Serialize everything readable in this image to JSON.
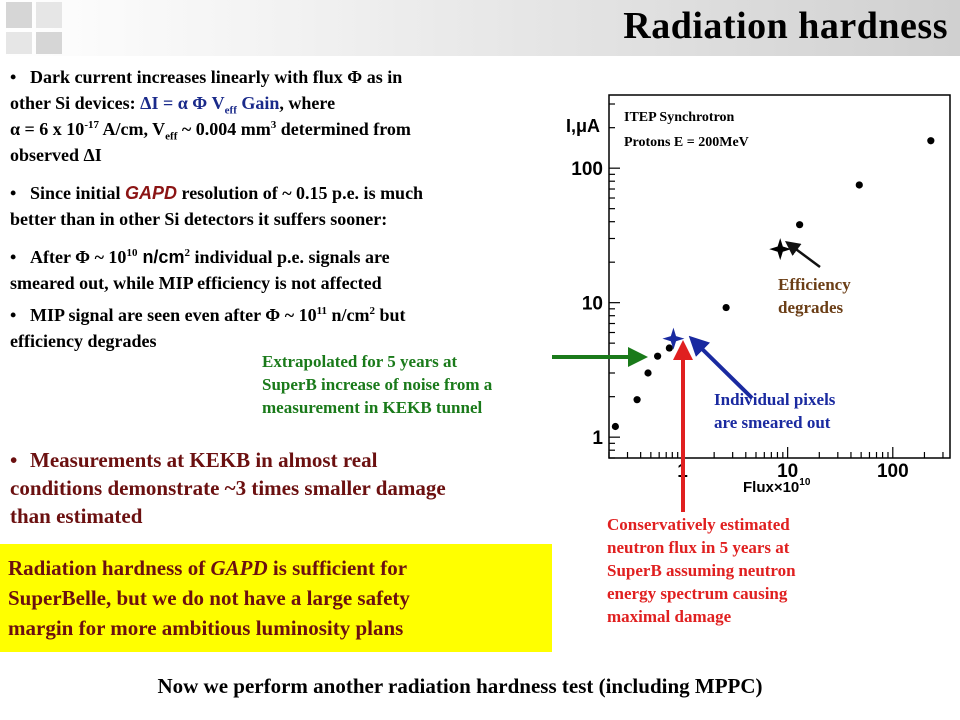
{
  "header": {
    "title": "Radiation  hardness"
  },
  "bullets": {
    "b1_l1": "Dark current increases linearly with flux Φ as in",
    "b1_l2a": "other Si devices: ",
    "b1_formula_a": "ΔI = α Φ V",
    "b1_formula_sub": "eff",
    "b1_formula_b": " Gain",
    "b1_l2c": ", where",
    "b1_l3a": "α = 6 x 10",
    "b1_l3_sup": "-17",
    "b1_l3b": " A/cm,  V",
    "b1_l3_sub": "eff",
    "b1_l3c": " ~ 0.004 mm",
    "b1_l3_sup2": "3",
    "b1_l3d": " determined from",
    "b1_l4": "observed ΔI",
    "b2_l1a": "Since initial ",
    "b2_gapd": "GAPD",
    "b2_l1b": " resolution of ~ 0.15 p.e. is much",
    "b2_l2": "better than in other Si detectors it suffers sooner:",
    "b3_l1a": "After Φ ~ 10",
    "b3_sup": "10",
    "b3_unit": " n/cm",
    "b3_unit_sup": "2",
    "b3_l1b": " individual p.e. signals are",
    "b3_l2": "smeared out, while MIP efficiency is not affected",
    "b4_l1a": "MIP signal are seen even after Φ ~ 10",
    "b4_sup": "11",
    "b4_l1b": " n/cm",
    "b4_sup2": "2",
    "b4_l1c": " but",
    "b4_l2": "efficiency degrades"
  },
  "kekb": {
    "l1": "Measurements at KEKB in almost real",
    "l2": "conditions demonstrate ~3 times smaller damage",
    "l3": "than estimated"
  },
  "conclusion": {
    "l1a": "Radiation hardness of ",
    "l1b": "GAPD",
    "l1c": " is sufficient for",
    "l2": "SuperBelle, but we do not have a large safety",
    "l3": "margin for more ambitious luminosity plans"
  },
  "footer": {
    "text": "Now we perform another radiation hardness test (including MPPC)"
  },
  "annotations": {
    "green_l1": "Extrapolated for 5 years at",
    "green_l2": "SuperB increase of noise from a",
    "green_l3": "measurement in KEKB tunnel",
    "blue_l1": "Individual pixels",
    "blue_l2": "are smeared out",
    "red_l1": "Conservatively estimated",
    "red_l2": "neutron flux in 5 years at",
    "red_l3": "SuperB assuming neutron",
    "red_l4": "energy spectrum causing",
    "red_l5": "maximal damage",
    "brown_l1": "Efficiency",
    "brown_l2": "degrades"
  },
  "colors": {
    "green": "#1a7a1a",
    "blue": "#1a2aa0",
    "red": "#e02020",
    "brown": "#6b3e16",
    "highlight": "#ffff00"
  },
  "chart_data": {
    "type": "scatter",
    "title": "",
    "legend_l1": "ITEP Synchrotron",
    "legend_l2": "Protons E = 200MeV",
    "ylabel": "I,μA",
    "xlabel": "Flux×10",
    "xlabel_sup": "10",
    "x_scale": "log",
    "y_scale": "log",
    "xlim": [
      0.2,
      350
    ],
    "ylim": [
      0.7,
      350
    ],
    "x_ticks": [
      "1",
      "10",
      "100"
    ],
    "y_ticks": [
      "1",
      "10",
      "100"
    ],
    "points": [
      {
        "x": 0.23,
        "y": 1.2
      },
      {
        "x": 0.37,
        "y": 1.9
      },
      {
        "x": 0.47,
        "y": 3.0
      },
      {
        "x": 0.58,
        "y": 4.0
      },
      {
        "x": 0.75,
        "y": 4.6
      },
      {
        "x": 2.6,
        "y": 9.2
      },
      {
        "x": 13,
        "y": 38
      },
      {
        "x": 48,
        "y": 75
      },
      {
        "x": 230,
        "y": 160
      }
    ],
    "star_points": [
      {
        "x": 0.82,
        "y": 5.4
      },
      {
        "x": 8.5,
        "y": 25
      }
    ]
  }
}
